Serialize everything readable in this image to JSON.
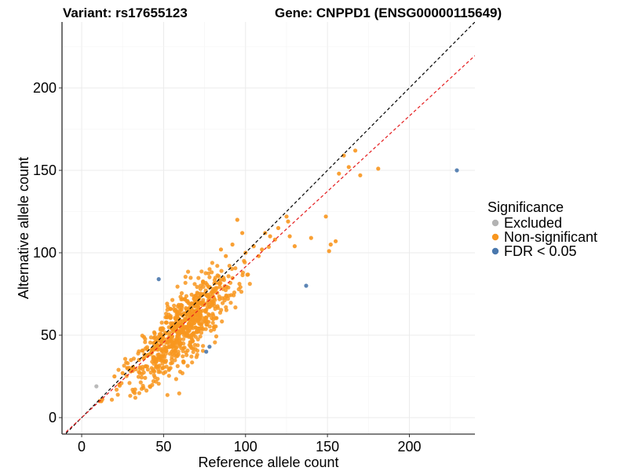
{
  "chart_data": {
    "type": "scatter",
    "title_left": "Variant: rs17655123",
    "title_right": "Gene: CNPPD1 (ENSG00000115649)",
    "xlabel": "Reference allele count",
    "ylabel": "Alternative allele count",
    "xlim": [
      -12,
      240
    ],
    "ylim": [
      -10,
      240
    ],
    "xticks": [
      0,
      50,
      100,
      150,
      200
    ],
    "yticks": [
      0,
      50,
      100,
      150,
      200
    ],
    "grid": true,
    "legend": {
      "title": "Significance",
      "position": "right",
      "items": [
        {
          "label": "Excluded",
          "color": "#b3b3b3"
        },
        {
          "label": "Non-significant",
          "color": "#f8961e"
        },
        {
          "label": "FDR < 0.05",
          "color": "#4a78ad"
        }
      ]
    },
    "reference_lines": [
      {
        "name": "identity",
        "slope": 1.0,
        "intercept": 0,
        "color": "#000000",
        "dash": true
      },
      {
        "name": "fit",
        "slope": 0.915,
        "intercept": 0,
        "color": "#e41a1c",
        "dash": true
      }
    ],
    "cloud": {
      "series": "Non-significant",
      "count": 750,
      "x_mean": 62,
      "x_sd": 15,
      "y_ratio": 0.88,
      "y_noise_sd": 10,
      "x_min": 12,
      "y_min": 10
    },
    "series": [
      {
        "name": "Non-significant",
        "color": "#f8961e",
        "points": [
          [
            11,
            10
          ],
          [
            12,
            10
          ],
          [
            20,
            25
          ],
          [
            25,
            27
          ],
          [
            28,
            30
          ],
          [
            30,
            28
          ],
          [
            35,
            35
          ],
          [
            100,
            100
          ],
          [
            105,
            104
          ],
          [
            108,
            98
          ],
          [
            110,
            102
          ],
          [
            112,
            112
          ],
          [
            115,
            110
          ],
          [
            118,
            108
          ],
          [
            120,
            115
          ],
          [
            125,
            122
          ],
          [
            126,
            119
          ],
          [
            127,
            110
          ],
          [
            130,
            104
          ],
          [
            140,
            109
          ],
          [
            149,
            122
          ],
          [
            151,
            101
          ],
          [
            152,
            105
          ],
          [
            155,
            107
          ],
          [
            157,
            148
          ],
          [
            160,
            159
          ],
          [
            163,
            152
          ],
          [
            167,
            162
          ],
          [
            170,
            147
          ],
          [
            181,
            151
          ],
          [
            95,
            120
          ],
          [
            98,
            112
          ],
          [
            92,
            105
          ],
          [
            88,
            98
          ],
          [
            85,
            102
          ]
        ]
      },
      {
        "name": "Excluded",
        "color": "#b3b3b3",
        "points": [
          [
            9,
            19
          ]
        ]
      },
      {
        "name": "FDR < 0.05",
        "color": "#4a78ad",
        "points": [
          [
            47,
            84
          ],
          [
            76,
            40
          ],
          [
            78,
            43
          ],
          [
            137,
            80
          ],
          [
            229,
            150
          ]
        ]
      }
    ]
  }
}
